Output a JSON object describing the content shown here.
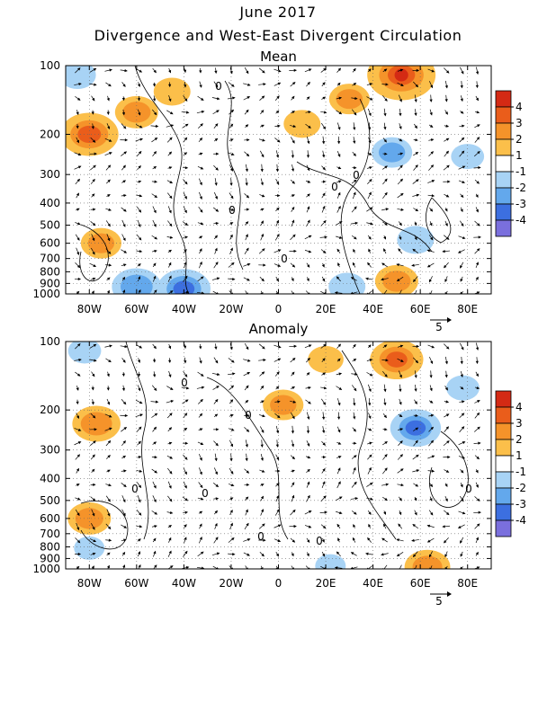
{
  "header": {
    "title": "June 2017",
    "subtitle": "Divergence and West-East Divergent Circulation"
  },
  "colors": {
    "levels": [
      "-4",
      "-3",
      "-2",
      "-1",
      "1",
      "2",
      "3",
      "4"
    ],
    "pos1": "#fbbf4a",
    "pos2": "#f5932a",
    "pos3": "#ea5d1b",
    "pos4": "#d42a14",
    "neg1": "#a8d3f5",
    "neg2": "#63a8ec",
    "neg3": "#3c6fe0",
    "neg4": "#7a6fdd"
  },
  "chart_data": [
    {
      "type": "heatmap",
      "title": "Mean",
      "x_ticks": [
        "80W",
        "60W",
        "40W",
        "20W",
        "0",
        "20E",
        "40E",
        "60E",
        "80E"
      ],
      "x_values": [
        -80,
        -60,
        -40,
        -20,
        0,
        20,
        40,
        60,
        80
      ],
      "xlim": [
        -90,
        90
      ],
      "y_ticks": [
        "100",
        "200",
        "300",
        "400",
        "500",
        "600",
        "700",
        "800",
        "900",
        "1000"
      ],
      "y_values": [
        100,
        200,
        300,
        400,
        500,
        600,
        700,
        800,
        900,
        1000
      ],
      "ylim": [
        1000,
        100
      ],
      "y_scale": "log",
      "colorbar_labels": [
        "4",
        "3",
        "2",
        "1",
        "-1",
        "-2",
        "-3",
        "-4"
      ],
      "vector_key": "5",
      "contour_label": "0",
      "regions": [
        {
          "lon": -80,
          "p": 200,
          "value": 3.2
        },
        {
          "lon": -75,
          "p": 600,
          "value": 1.8
        },
        {
          "lon": -60,
          "p": 160,
          "value": 2.0
        },
        {
          "lon": -45,
          "p": 130,
          "value": 1.5
        },
        {
          "lon": -60,
          "p": 930,
          "value": -2.5
        },
        {
          "lon": -40,
          "p": 950,
          "value": -2.8
        },
        {
          "lon": -85,
          "p": 110,
          "value": -1.5
        },
        {
          "lon": 10,
          "p": 180,
          "value": 1.5
        },
        {
          "lon": 30,
          "p": 140,
          "value": 1.8
        },
        {
          "lon": 52,
          "p": 110,
          "value": 4.0
        },
        {
          "lon": 48,
          "p": 240,
          "value": -1.8
        },
        {
          "lon": 58,
          "p": 580,
          "value": -1.5
        },
        {
          "lon": 80,
          "p": 250,
          "value": -1.2
        },
        {
          "lon": 50,
          "p": 880,
          "value": 2.0
        },
        {
          "lon": 29,
          "p": 930,
          "value": -1.5
        }
      ]
    },
    {
      "type": "heatmap",
      "title": "Anomaly",
      "x_ticks": [
        "80W",
        "60W",
        "40W",
        "20W",
        "0",
        "20E",
        "40E",
        "60E",
        "80E"
      ],
      "x_values": [
        -80,
        -60,
        -40,
        -20,
        0,
        20,
        40,
        60,
        80
      ],
      "xlim": [
        -90,
        90
      ],
      "y_ticks": [
        "100",
        "200",
        "300",
        "400",
        "500",
        "600",
        "700",
        "800",
        "900",
        "1000"
      ],
      "y_values": [
        100,
        200,
        300,
        400,
        500,
        600,
        700,
        800,
        900,
        1000
      ],
      "ylim": [
        1000,
        100
      ],
      "y_scale": "log",
      "colorbar_labels": [
        "4",
        "3",
        "2",
        "1",
        "-1",
        "-2",
        "-3",
        "-4"
      ],
      "vector_key": "5",
      "contour_label": "0",
      "regions": [
        {
          "lon": -82,
          "p": 110,
          "value": -1.2
        },
        {
          "lon": -77,
          "p": 230,
          "value": 2.4
        },
        {
          "lon": 2,
          "p": 190,
          "value": 1.8
        },
        {
          "lon": 20,
          "p": 120,
          "value": 1.4
        },
        {
          "lon": 50,
          "p": 120,
          "value": 2.8
        },
        {
          "lon": 58,
          "p": 240,
          "value": -2.6
        },
        {
          "lon": 78,
          "p": 160,
          "value": -1.2
        },
        {
          "lon": -80,
          "p": 600,
          "value": 2.0
        },
        {
          "lon": 63,
          "p": 980,
          "value": 2.2
        },
        {
          "lon": 22,
          "p": 970,
          "value": -1.0
        },
        {
          "lon": -80,
          "p": 810,
          "value": -1.0
        }
      ]
    }
  ]
}
